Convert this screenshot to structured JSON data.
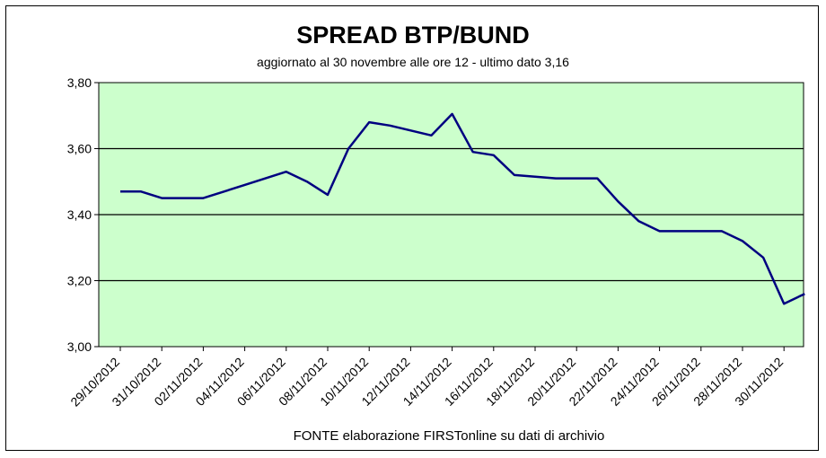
{
  "chart_data": {
    "type": "line",
    "title": "SPREAD  BTP/BUND",
    "subtitle": "aggiornato al 30  novembre alle ore 12 - ultimo dato 3,16",
    "footer": "FONTE elaborazione FIRSTonline su dati di archivio",
    "xlabel": "",
    "ylabel": "",
    "ylim": [
      3.0,
      3.8
    ],
    "y_ticks": [
      "3,00",
      "3,20",
      "3,40",
      "3,60",
      "3,80"
    ],
    "x_tick_labels": [
      "29/10/2012",
      "31/10/2012",
      "02/11/2012",
      "04/11/2012",
      "06/11/2012",
      "08/11/2012",
      "10/11/2012",
      "12/11/2012",
      "14/11/2012",
      "16/11/2012",
      "18/11/2012",
      "20/11/2012",
      "22/11/2012",
      "24/11/2012",
      "26/11/2012",
      "28/11/2012",
      "30/11/2012"
    ],
    "grid": "horizontal",
    "plot_background": "#ccffcc",
    "line_color": "#000080",
    "series": [
      {
        "points": [
          [
            "29/10/2012",
            3.47
          ],
          [
            "30/10/2012",
            3.47
          ],
          [
            "31/10/2012",
            3.45
          ],
          [
            "01/11/2012",
            3.45
          ],
          [
            "02/11/2012",
            3.45
          ],
          [
            "03/11/2012",
            3.47
          ],
          [
            "04/11/2012",
            3.49
          ],
          [
            "05/11/2012",
            3.51
          ],
          [
            "06/11/2012",
            3.53
          ],
          [
            "07/11/2012",
            3.5
          ],
          [
            "08/11/2012",
            3.46
          ],
          [
            "09/11/2012",
            3.6
          ],
          [
            "10/11/2012",
            3.68
          ],
          [
            "11/11/2012",
            3.67
          ],
          [
            "12/11/2012",
            3.655
          ],
          [
            "13/11/2012",
            3.64
          ],
          [
            "14/11/2012",
            3.705
          ],
          [
            "15/11/2012",
            3.59
          ],
          [
            "16/11/2012",
            3.58
          ],
          [
            "17/11/2012",
            3.52
          ],
          [
            "18/11/2012",
            3.515
          ],
          [
            "19/11/2012",
            3.51
          ],
          [
            "20/11/2012",
            3.51
          ],
          [
            "21/11/2012",
            3.51
          ],
          [
            "22/11/2012",
            3.44
          ],
          [
            "23/11/2012",
            3.38
          ],
          [
            "24/11/2012",
            3.35
          ],
          [
            "25/11/2012",
            3.35
          ],
          [
            "26/11/2012",
            3.35
          ],
          [
            "27/11/2012",
            3.35
          ],
          [
            "28/11/2012",
            3.32
          ],
          [
            "29/11/2012",
            3.27
          ],
          [
            "30/11/2012",
            3.13
          ],
          [
            "01/12/2012",
            3.16
          ]
        ]
      }
    ]
  }
}
